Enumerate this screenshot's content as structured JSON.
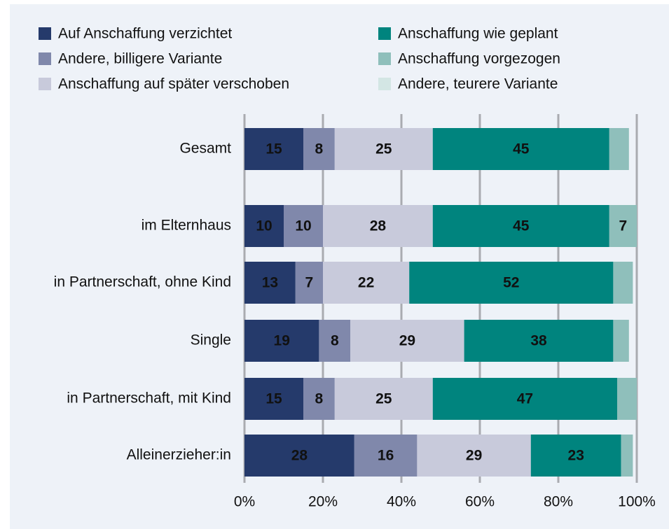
{
  "chart_data": {
    "type": "stacked-bar-horizontal",
    "categories": [
      "Gesamt",
      "im Elternhaus",
      "in Partnerschaft, ohne Kind",
      "Single",
      "in Partnerschaft, mit Kind",
      "Alleinerzieher:in"
    ],
    "series": [
      {
        "name": "Auf Anschaffung verzichtet",
        "color": "#253a6b",
        "values": [
          15,
          10,
          13,
          19,
          15,
          28
        ]
      },
      {
        "name": "Andere, billigere Variante",
        "color": "#8088ab",
        "values": [
          8,
          10,
          7,
          8,
          8,
          16
        ]
      },
      {
        "name": "Anschaffung auf später verschoben",
        "color": "#c8cadb",
        "values": [
          25,
          28,
          22,
          29,
          25,
          29
        ]
      },
      {
        "name": "Anschaffung wie geplant",
        "color": "#00847e",
        "values": [
          45,
          45,
          52,
          38,
          47,
          23
        ]
      },
      {
        "name": "Anschaffung vorgezogen",
        "color": "#8fbfbb",
        "values": [
          5,
          7,
          5,
          4,
          5,
          3
        ]
      },
      {
        "name": "Andere, teurere Variante",
        "color": "#d3e6e4",
        "values": [
          0,
          0,
          0,
          0,
          0,
          0
        ]
      }
    ],
    "xlim": [
      0,
      100
    ],
    "xticks": [
      {
        "value": 0,
        "label": "0%"
      },
      {
        "value": 20,
        "label": "20%"
      },
      {
        "value": 40,
        "label": "40%"
      },
      {
        "value": 60,
        "label": "60%"
      },
      {
        "value": 80,
        "label": "80%"
      },
      {
        "value": 100,
        "label": "100%"
      }
    ],
    "grid": true
  }
}
